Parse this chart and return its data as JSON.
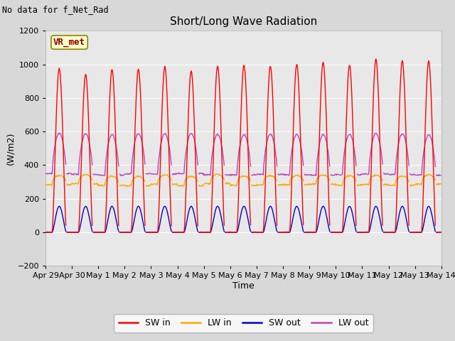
{
  "title": "Short/Long Wave Radiation",
  "xlabel": "Time",
  "ylabel": "(W/m2)",
  "annotation": "No data for f_Net_Rad",
  "station_label": "VR_met",
  "ylim": [
    -200,
    1200
  ],
  "yticks": [
    -200,
    0,
    200,
    400,
    600,
    800,
    1000,
    1200
  ],
  "x_tick_labels": [
    "Apr 29",
    "Apr 30",
    "May 1",
    "May 2",
    "May 3",
    "May 4",
    "May 5",
    "May 6",
    "May 7",
    "May 8",
    "May 9",
    "May 10",
    "May 11",
    "May 12",
    "May 13",
    "May 14"
  ],
  "fig_bg_color": "#d8d8d8",
  "plot_bg_color": "#e8e8e8",
  "grid_color": "#ffffff",
  "sw_in_color": "#ff0000",
  "lw_in_color": "#ffa500",
  "sw_out_color": "#0000cc",
  "lw_out_color": "#bb44bb",
  "n_days": 15,
  "pts_per_day": 48,
  "sw_in_peaks": [
    975,
    940,
    970,
    970,
    985,
    960,
    990,
    995,
    990,
    1000,
    1010,
    995,
    1030,
    1020,
    1020
  ],
  "lw_in_night": 285,
  "lw_in_day_add": 55,
  "sw_out_peak": 155,
  "lw_out_night": 345,
  "lw_out_day_add": 240,
  "line_width": 1.0
}
